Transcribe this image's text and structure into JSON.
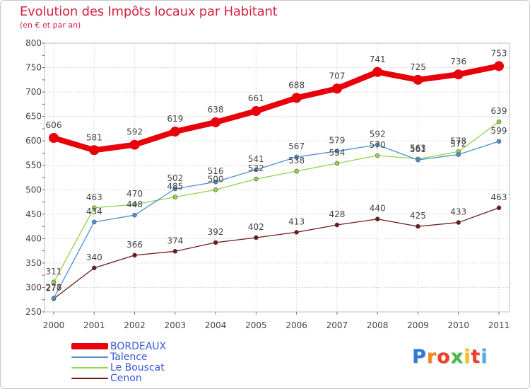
{
  "chart_data": {
    "type": "line",
    "title": "Evolution des Impôts locaux par Habitant",
    "subtitle": "(en € et par an)",
    "xlabel": "",
    "ylabel": "",
    "x": [
      "2000",
      "2001",
      "2002",
      "2003",
      "2004",
      "2005",
      "2006",
      "2007",
      "2008",
      "2009",
      "2010",
      "2011"
    ],
    "ylim": [
      250,
      800
    ],
    "yticks": [
      250,
      300,
      350,
      400,
      450,
      500,
      550,
      600,
      650,
      700,
      750,
      800
    ],
    "grid": true,
    "legend_position": "bottom-left",
    "series": [
      {
        "name": "BORDEAUX",
        "color": "#e8000b",
        "values": [
          606,
          581,
          592,
          619,
          638,
          661,
          688,
          707,
          741,
          725,
          736,
          753
        ],
        "labels": [
          "606",
          "581",
          "592",
          "619",
          "638",
          "661",
          "688",
          "707",
          "741",
          "725",
          "736",
          "753"
        ]
      },
      {
        "name": "Talence",
        "color": "#4c8fd1",
        "values": [
          278,
          434,
          448,
          502,
          516,
          541,
          567,
          579,
          592,
          561,
          572,
          599
        ],
        "labels": [
          "278",
          "434",
          "448",
          "502",
          "516",
          "541",
          "567",
          "579",
          "592",
          "561",
          "572",
          "599"
        ]
      },
      {
        "name": "Le Bouscat",
        "color": "#8fd44a",
        "values": [
          311,
          463,
          470,
          485,
          500,
          522,
          538,
          554,
          570,
          563,
          578,
          639
        ],
        "labels": [
          "311",
          "463",
          "470",
          "485",
          "500",
          "522",
          "538",
          "554",
          "570",
          "563",
          "578",
          "639"
        ]
      },
      {
        "name": "Cenon",
        "color": "#6e1a1c",
        "values": [
          277,
          340,
          366,
          374,
          392,
          402,
          413,
          428,
          440,
          425,
          433,
          463
        ],
        "labels": [
          "277",
          "340",
          "366",
          "374",
          "392",
          "402",
          "413",
          "428",
          "440",
          "425",
          "433",
          "463"
        ]
      }
    ]
  },
  "logo": {
    "letters": [
      "P",
      "r",
      "o",
      "x",
      "i",
      "t",
      "i"
    ],
    "colors": [
      "#2f7ad8",
      "#f08a1c",
      "#ef3f2a",
      "#4bb84a",
      "#f5c21b",
      "#ef3f2a",
      "#4fa9e8"
    ]
  }
}
